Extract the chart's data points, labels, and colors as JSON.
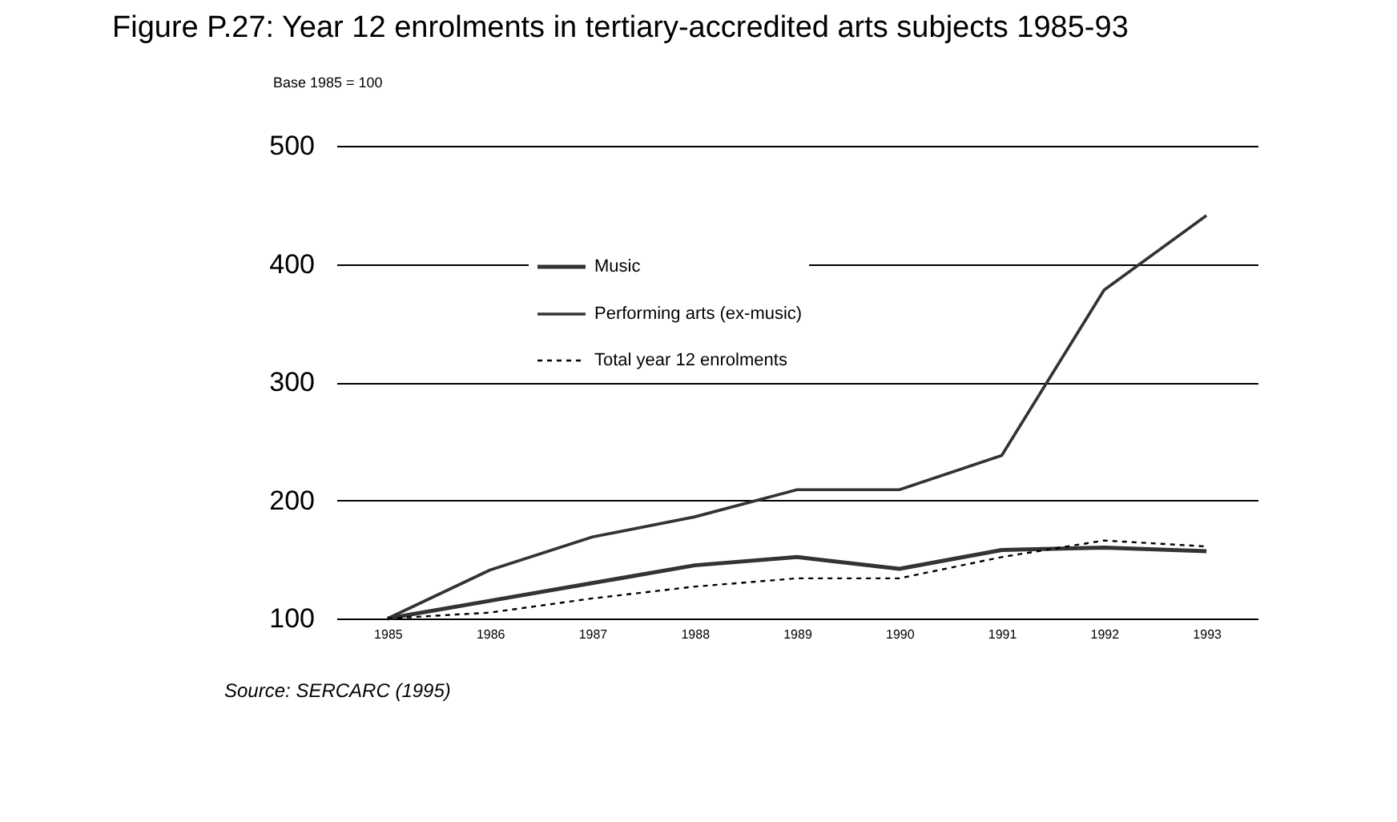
{
  "chart_data": {
    "type": "line",
    "title": "Figure P.27: Year 12 enrolments in tertiary-accredited arts subjects 1985-93",
    "ylabel": "Base 1985 = 100",
    "categories": [
      "1985",
      "1986",
      "1987",
      "1988",
      "1989",
      "1990",
      "1991",
      "1992",
      "1993"
    ],
    "series": [
      {
        "name": "Music",
        "color": "#333333",
        "line_style": "solid",
        "values": [
          100,
          115,
          130,
          145,
          152,
          142,
          158,
          160,
          157
        ]
      },
      {
        "name": "Performing arts (ex-music)",
        "color": "#333333",
        "line_style": "solid",
        "values": [
          100,
          141,
          169,
          186,
          209,
          209,
          238,
          378,
          441
        ]
      },
      {
        "name": "Total year 12 enrolments",
        "color": "#000000",
        "line_style": "dotted",
        "values": [
          100,
          105,
          117,
          127,
          134,
          134,
          152,
          166,
          161
        ]
      }
    ],
    "ylim": [
      100,
      500
    ],
    "yticks": [
      100,
      200,
      300,
      400,
      500
    ],
    "grid": "y",
    "legend": "top left",
    "marker": "none",
    "annotations": [
      "Source: SERCARC (1995)"
    ]
  }
}
